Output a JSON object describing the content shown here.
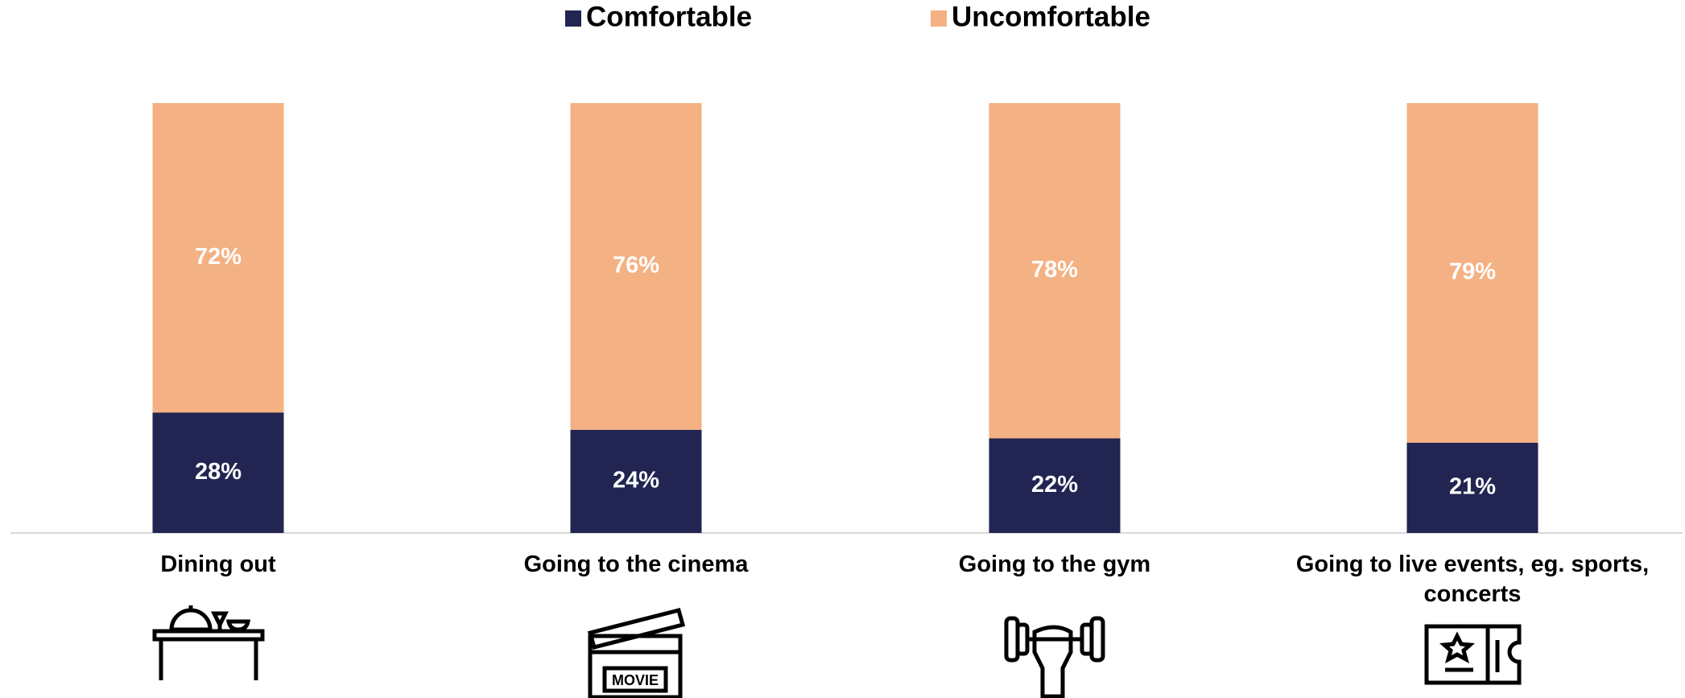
{
  "chart_data": {
    "type": "stacked_bar",
    "categories": [
      "Dining out",
      "Going to the cinema",
      "Going to the gym",
      "Going to live events, eg. sports, concerts"
    ],
    "series": [
      {
        "name": "Comfortable",
        "color": "#222551",
        "values": [
          28,
          24,
          22,
          21
        ],
        "value_labels": [
          "28%",
          "24%",
          "22%",
          "21%"
        ]
      },
      {
        "name": "Uncomfortable",
        "color": "#f4b183",
        "values": [
          72,
          76,
          78,
          79
        ],
        "value_labels": [
          "72%",
          "76%",
          "78%",
          "79%"
        ]
      }
    ],
    "ylim": [
      0,
      100
    ],
    "legend": "top"
  }
}
